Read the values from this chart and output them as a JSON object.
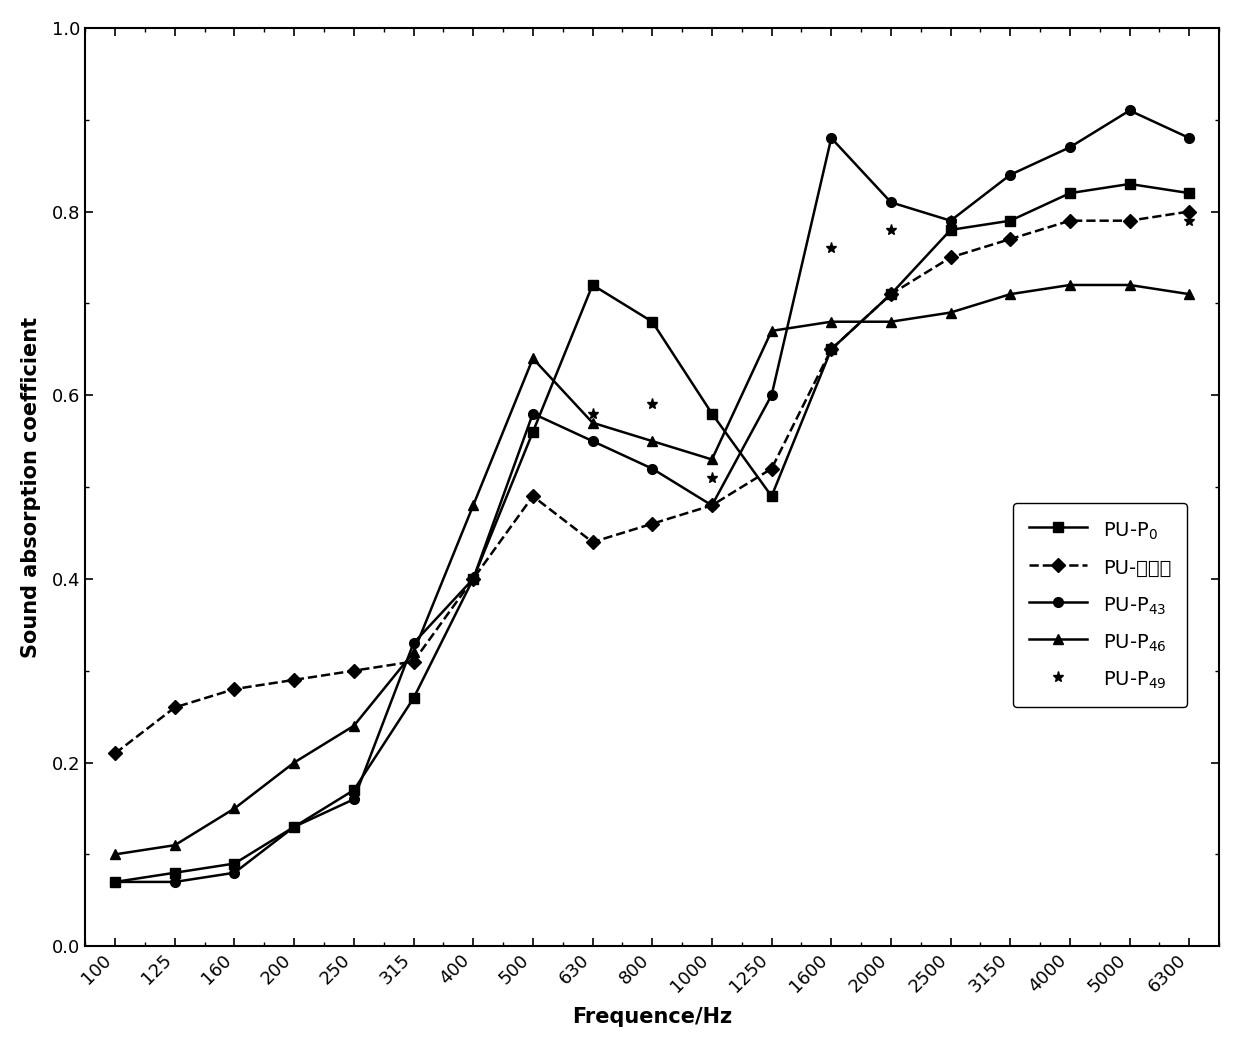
{
  "frequencies": [
    100,
    125,
    160,
    200,
    250,
    315,
    400,
    500,
    630,
    800,
    1000,
    1250,
    1600,
    2000,
    2500,
    3150,
    4000,
    5000,
    6300
  ],
  "PU_P0": [
    0.07,
    0.08,
    0.09,
    0.13,
    0.17,
    0.27,
    0.4,
    0.56,
    0.72,
    0.68,
    0.58,
    0.49,
    0.65,
    0.71,
    0.78,
    0.79,
    0.82,
    0.83,
    0.82
  ],
  "PU_shi": [
    0.21,
    0.26,
    0.28,
    0.29,
    0.3,
    0.31,
    0.4,
    0.49,
    0.44,
    0.46,
    0.48,
    0.52,
    0.65,
    0.71,
    0.75,
    0.77,
    0.79,
    0.79,
    0.8
  ],
  "PU_P43": [
    0.07,
    0.07,
    0.08,
    0.13,
    0.16,
    0.33,
    0.4,
    0.58,
    0.55,
    0.52,
    0.48,
    0.6,
    0.88,
    0.81,
    0.79,
    0.84,
    0.87,
    0.91,
    0.88
  ],
  "PU_P46": [
    0.1,
    0.11,
    0.15,
    0.2,
    0.24,
    0.32,
    0.48,
    0.64,
    0.57,
    0.55,
    0.53,
    0.67,
    0.68,
    0.68,
    0.69,
    0.71,
    0.72,
    0.72,
    0.71
  ],
  "PU_P49_x": [
    630,
    800,
    1000,
    1600,
    2000,
    2500,
    3150,
    4000,
    5000,
    6300
  ],
  "PU_P49_y": [
    0.58,
    0.59,
    0.51,
    0.76,
    0.78,
    0.79,
    0.77,
    0.79,
    0.79,
    0.79
  ],
  "xlabel": "Frequence/Hz",
  "ylabel": "Sound absorption coefficient",
  "xtick_labels": [
    "100",
    "125",
    "160",
    "200",
    "250",
    "315",
    "400",
    "500",
    "630",
    "800",
    "1000",
    "1250",
    "1600",
    "2000",
    "2500",
    "3150",
    "4000",
    "5000",
    "6300"
  ],
  "ylim": [
    0.0,
    1.0
  ],
  "yticks": [
    0.0,
    0.2,
    0.4,
    0.6,
    0.8,
    1.0
  ],
  "legend_PU_P0": "PU-P$_0$",
  "legend_PU_shi": "PU-实施例",
  "legend_PU_P43": "PU-P$_{43}$",
  "legend_PU_P46": "PU-P$_{46}$",
  "legend_PU_P49": "PU-P$_{49}$"
}
